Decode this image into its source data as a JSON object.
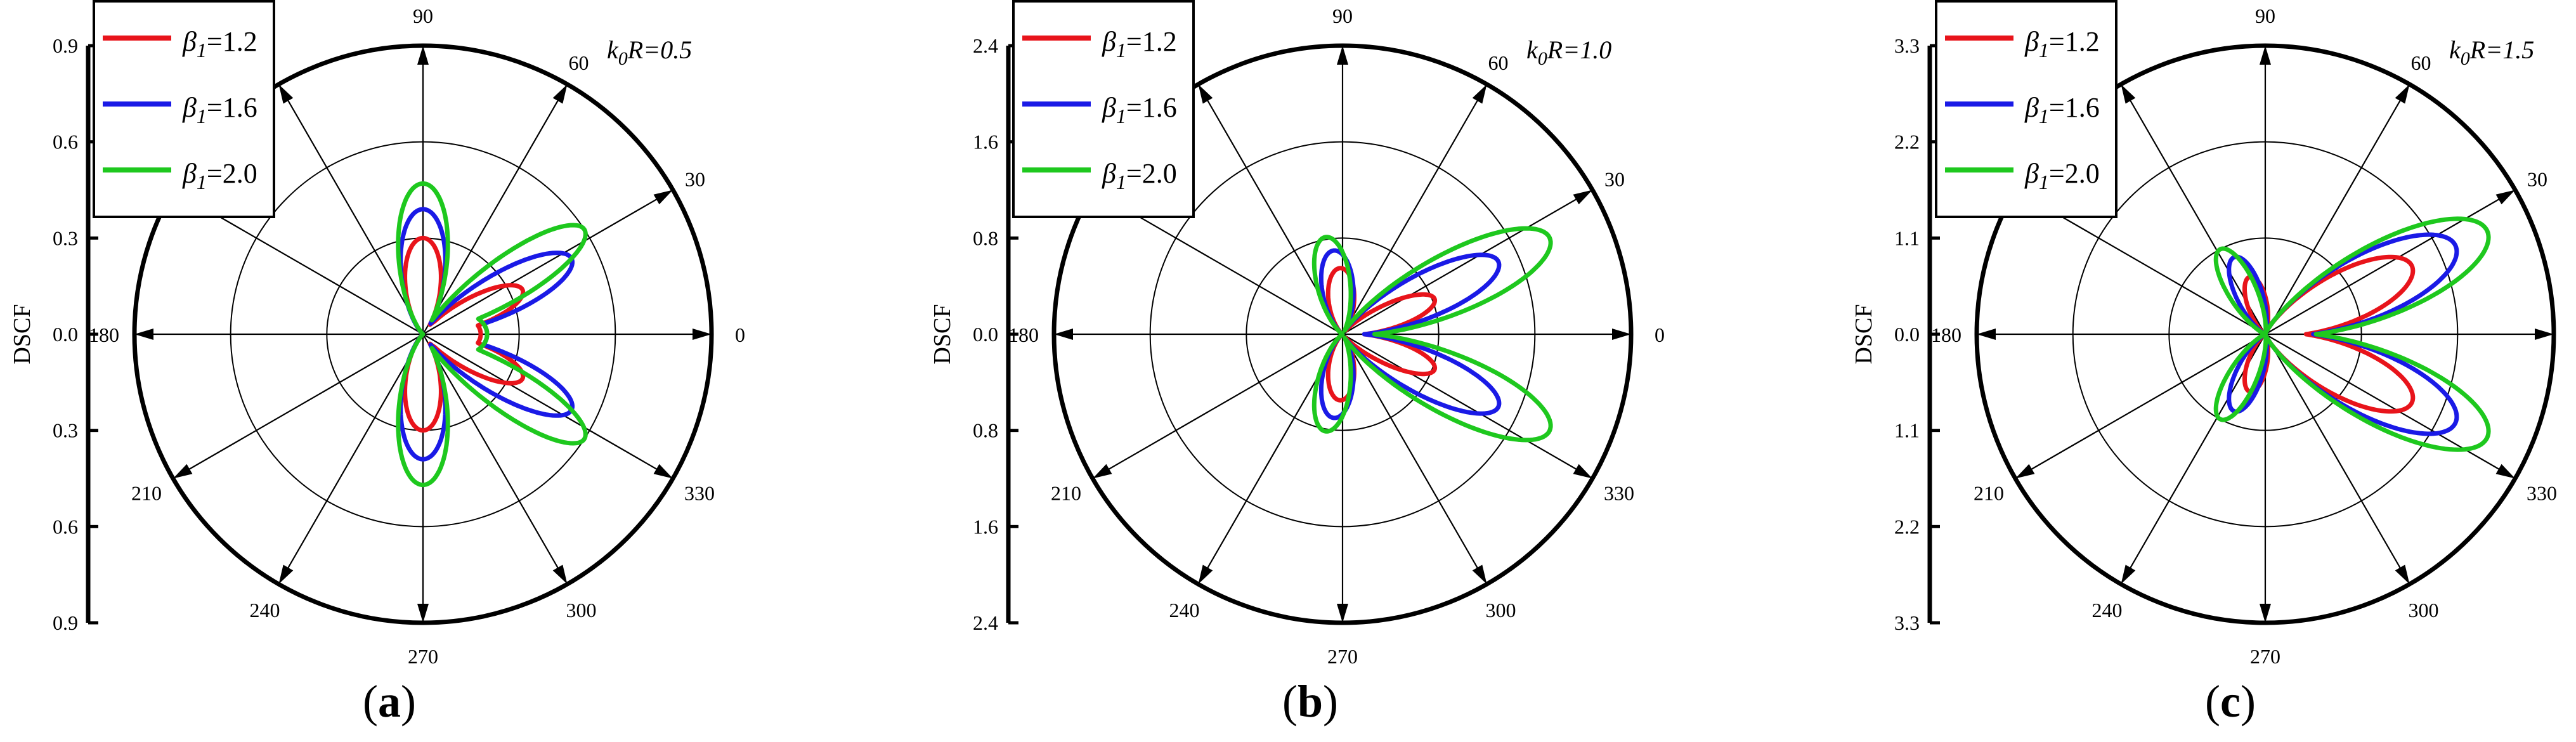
{
  "chart_data": [
    {
      "type": "polar",
      "panel_label": "(a)",
      "annotation": {
        "var": "k",
        "sub": "0",
        "rest": "R=0.5"
      },
      "ylabel": "DSCF",
      "rmax": 0.9,
      "radial_ticks": [
        0.9,
        0.6,
        0.3,
        0.0,
        0.3,
        0.6,
        0.9
      ],
      "radial_tick_labels": [
        "0.9",
        "0.6",
        "0.3",
        "0.0",
        "0.3",
        "0.6",
        "0.9"
      ],
      "angle_labels": [
        "0",
        "30",
        "60",
        "90",
        "180",
        "210",
        "240",
        "270",
        "300",
        "330"
      ],
      "legend": [
        {
          "name": "β",
          "sub": "1",
          "value": "=1.2",
          "color": "#e8141b"
        },
        {
          "name": "β",
          "sub": "1",
          "value": "=1.6",
          "color": "#1a1ae6"
        },
        {
          "name": "β",
          "sub": "1",
          "value": "=2.0",
          "color": "#1ec81e"
        }
      ],
      "series": [
        {
          "legend": "β1=1.2",
          "color": "#e8141b",
          "lobes": [
            [
              0,
              0.18,
              3
            ],
            [
              24,
              0.34,
              20
            ],
            [
              90,
              0.3,
              10
            ]
          ]
        },
        {
          "legend": "β1=1.6",
          "color": "#1a1ae6",
          "lobes": [
            [
              0,
              0.2,
              3
            ],
            [
              27,
              0.52,
              22
            ],
            [
              90,
              0.39,
              11
            ]
          ]
        },
        {
          "legend": "β1=2.0",
          "color": "#1ec81e",
          "lobes": [
            [
              0,
              0.2,
              3
            ],
            [
              33,
              0.6,
              26
            ],
            [
              90,
              0.47,
              13
            ]
          ]
        }
      ]
    },
    {
      "type": "polar",
      "panel_label": "(b)",
      "annotation": {
        "var": "k",
        "sub": "0",
        "rest": "R=1.0"
      },
      "ylabel": "DSCF",
      "rmax": 2.4,
      "radial_ticks": [
        2.4,
        1.6,
        0.8,
        0.0,
        0.8,
        1.6,
        2.4
      ],
      "radial_tick_labels": [
        "2.4",
        "1.6",
        "0.8",
        "0.0",
        "0.8",
        "1.6",
        "2.4"
      ],
      "angle_labels": [
        "0",
        "30",
        "60",
        "90",
        "180",
        "210",
        "240",
        "270",
        "300",
        "330"
      ],
      "legend": [
        {
          "name": "β",
          "sub": "1",
          "value": "=1.2",
          "color": "#e8141b"
        },
        {
          "name": "β",
          "sub": "1",
          "value": "=1.6",
          "color": "#1a1ae6"
        },
        {
          "name": "β",
          "sub": "1",
          "value": "=2.0",
          "color": "#1ec81e"
        }
      ],
      "series": [
        {
          "legend": "β1=1.2",
          "color": "#e8141b",
          "lobes": [
            [
              21,
              0.82,
              22
            ],
            [
              92,
              0.55,
              9
            ]
          ]
        },
        {
          "legend": "β1=1.6",
          "color": "#1a1ae6",
          "lobes": [
            [
              25,
              1.43,
              21
            ],
            [
              96,
              0.7,
              10
            ]
          ]
        },
        {
          "legend": "β1=2.0",
          "color": "#1ec81e",
          "lobes": [
            [
              25,
              1.9,
              20
            ],
            [
              100,
              0.82,
              12
            ]
          ]
        }
      ]
    },
    {
      "type": "polar",
      "panel_label": "(c)",
      "annotation": {
        "var": "k",
        "sub": "0",
        "rest": "R=1.5"
      },
      "ylabel": "DSCF",
      "rmax": 3.3,
      "radial_ticks": [
        3.3,
        2.2,
        1.1,
        0.0,
        1.1,
        2.2,
        3.3
      ],
      "radial_tick_labels": [
        "3.3",
        "2.2",
        "1.1",
        "0.0",
        "1.1",
        "2.2",
        "3.3"
      ],
      "angle_labels": [
        "0",
        "30",
        "60",
        "90",
        "180",
        "210",
        "240",
        "270",
        "300",
        "330"
      ],
      "legend": [
        {
          "name": "β",
          "sub": "1",
          "value": "=1.2",
          "color": "#e8141b"
        },
        {
          "name": "β",
          "sub": "1",
          "value": "=1.6",
          "color": "#1a1ae6"
        },
        {
          "name": "β",
          "sub": "1",
          "value": "=2.0",
          "color": "#1ec81e"
        }
      ],
      "series": [
        {
          "legend": "β1=1.2",
          "color": "#e8141b",
          "lobes": [
            [
              25,
              1.85,
              14
            ],
            [
              105,
              0.68,
              13
            ]
          ]
        },
        {
          "legend": "β1=1.6",
          "color": "#1a1ae6",
          "lobes": [
            [
              25,
              2.4,
              15
            ],
            [
              112,
              0.95,
              14
            ]
          ]
        },
        {
          "legend": "β1=2.0",
          "color": "#1ec81e",
          "lobes": [
            [
              25,
              2.8,
              16
            ],
            [
              118,
              1.1,
              16
            ]
          ]
        }
      ]
    }
  ]
}
